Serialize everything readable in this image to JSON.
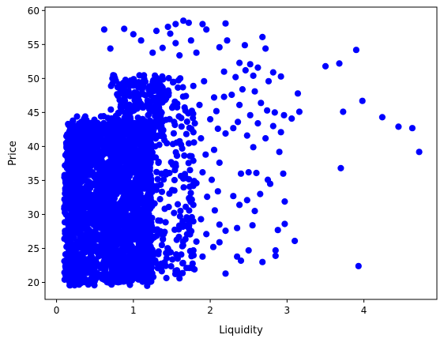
{
  "chart_data": {
    "type": "scatter",
    "xlabel": "Liquidity",
    "ylabel": "Price",
    "xlim": [
      -0.15,
      4.95
    ],
    "ylim": [
      17.5,
      60.5
    ],
    "xticks": [
      0,
      1,
      2,
      3,
      4
    ],
    "yticks": [
      20,
      25,
      30,
      35,
      40,
      45,
      50,
      55,
      60
    ],
    "grid": false,
    "marker_color": "#0000ff",
    "points": [
      [
        0.62,
        57.2
      ],
      [
        0.88,
        57.3
      ],
      [
        1.0,
        56.5
      ],
      [
        0.7,
        54.4
      ],
      [
        1.1,
        55.6
      ],
      [
        1.3,
        57.0
      ],
      [
        1.45,
        57.6
      ],
      [
        1.55,
        58.0
      ],
      [
        1.65,
        58.5
      ],
      [
        1.72,
        58.2
      ],
      [
        1.9,
        58.0
      ],
      [
        1.95,
        57.2
      ],
      [
        1.48,
        56.6
      ],
      [
        1.75,
        55.6
      ],
      [
        1.55,
        55.2
      ],
      [
        1.38,
        54.5
      ],
      [
        1.25,
        53.8
      ],
      [
        1.6,
        53.4
      ],
      [
        1.82,
        53.8
      ],
      [
        2.2,
        58.1
      ],
      [
        2.22,
        55.6
      ],
      [
        2.12,
        54.6
      ],
      [
        2.45,
        54.9
      ],
      [
        2.68,
        56.1
      ],
      [
        2.72,
        54.4
      ],
      [
        2.38,
        52.3
      ],
      [
        2.52,
        52.1
      ],
      [
        2.46,
        51.2
      ],
      [
        2.62,
        51.6
      ],
      [
        2.82,
        50.9
      ],
      [
        2.92,
        50.3
      ],
      [
        2.76,
        49.6
      ],
      [
        2.56,
        50.4
      ],
      [
        2.33,
        50.2
      ],
      [
        2.18,
        51.0
      ],
      [
        2.42,
        48.4
      ],
      [
        2.58,
        48.1
      ],
      [
        2.18,
        47.3
      ],
      [
        2.28,
        47.6
      ],
      [
        2.38,
        46.1
      ],
      [
        2.66,
        46.4
      ],
      [
        2.74,
        45.3
      ],
      [
        2.84,
        45.0
      ],
      [
        2.96,
        44.6
      ],
      [
        3.06,
        44.1
      ],
      [
        3.14,
        47.8
      ],
      [
        3.16,
        45.1
      ],
      [
        2.52,
        44.6
      ],
      [
        2.36,
        43.6
      ],
      [
        2.62,
        43.4
      ],
      [
        2.82,
        43.0
      ],
      [
        2.92,
        42.1
      ],
      [
        2.48,
        41.6
      ],
      [
        2.72,
        41.2
      ],
      [
        2.2,
        41.9
      ],
      [
        2.3,
        42.7
      ],
      [
        2.56,
        39.9
      ],
      [
        2.9,
        39.2
      ],
      [
        2.6,
        36.1
      ],
      [
        2.4,
        36.0
      ],
      [
        2.5,
        36.2
      ],
      [
        2.75,
        35.1
      ],
      [
        2.78,
        34.5
      ],
      [
        2.95,
        36.0
      ],
      [
        2.65,
        33.0
      ],
      [
        2.3,
        32.7
      ],
      [
        2.48,
        32.1
      ],
      [
        2.38,
        31.4
      ],
      [
        2.58,
        30.5
      ],
      [
        2.97,
        31.9
      ],
      [
        2.97,
        28.6
      ],
      [
        2.88,
        27.7
      ],
      [
        2.55,
        28.4
      ],
      [
        2.35,
        28.0
      ],
      [
        2.2,
        27.6
      ],
      [
        2.12,
        25.9
      ],
      [
        2.5,
        24.7
      ],
      [
        2.85,
        24.7
      ],
      [
        2.85,
        23.9
      ],
      [
        3.1,
        26.1
      ],
      [
        2.35,
        23.8
      ],
      [
        2.4,
        23.2
      ],
      [
        2.2,
        21.3
      ],
      [
        2.68,
        23.0
      ],
      [
        3.5,
        51.8
      ],
      [
        3.68,
        52.2
      ],
      [
        3.9,
        54.2
      ],
      [
        3.98,
        46.7
      ],
      [
        3.73,
        45.1
      ],
      [
        4.24,
        44.3
      ],
      [
        4.45,
        42.9
      ],
      [
        4.63,
        42.7
      ],
      [
        4.72,
        39.2
      ],
      [
        3.7,
        36.8
      ],
      [
        3.93,
        22.4
      ],
      [
        1.78,
        48.9
      ],
      [
        1.92,
        49.6
      ],
      [
        2.05,
        47.2
      ],
      [
        1.86,
        46.1
      ],
      [
        2.08,
        45.2
      ],
      [
        2.0,
        44.0
      ],
      [
        1.8,
        43.4
      ],
      [
        2.1,
        42.6
      ],
      [
        1.88,
        41.2
      ],
      [
        2.05,
        39.5
      ],
      [
        1.94,
        38.8
      ],
      [
        1.78,
        37.9
      ],
      [
        2.12,
        37.6
      ],
      [
        1.9,
        36.2
      ],
      [
        2.02,
        35.1
      ],
      [
        1.82,
        34.6
      ],
      [
        2.1,
        33.4
      ],
      [
        1.96,
        32.6
      ],
      [
        1.78,
        31.4
      ],
      [
        2.06,
        30.6
      ],
      [
        1.88,
        29.3
      ],
      [
        2.12,
        28.5
      ],
      [
        1.95,
        27.1
      ],
      [
        1.82,
        26.0
      ],
      [
        2.04,
        25.2
      ],
      [
        1.74,
        24.6
      ],
      [
        1.9,
        23.8
      ],
      [
        1.64,
        22.8
      ],
      [
        1.55,
        21.7
      ],
      [
        1.6,
        20.6
      ],
      [
        1.36,
        21.9
      ],
      [
        1.26,
        20.8
      ],
      [
        1.12,
        20.1
      ],
      [
        1.18,
        19.5
      ]
    ],
    "cloud": [
      {
        "x": [
          0.1,
          1.25
        ],
        "y": [
          20.0,
          43.5
        ],
        "n": 1900
      },
      {
        "x": [
          0.15,
          1.0
        ],
        "y": [
          19.5,
          44.5
        ],
        "n": 500
      },
      {
        "x": [
          0.7,
          1.8
        ],
        "y": [
          20.5,
          50.5
        ],
        "n": 420
      },
      {
        "x": [
          0.8,
          1.4
        ],
        "y": [
          41.0,
          50.0
        ],
        "n": 160
      }
    ]
  }
}
